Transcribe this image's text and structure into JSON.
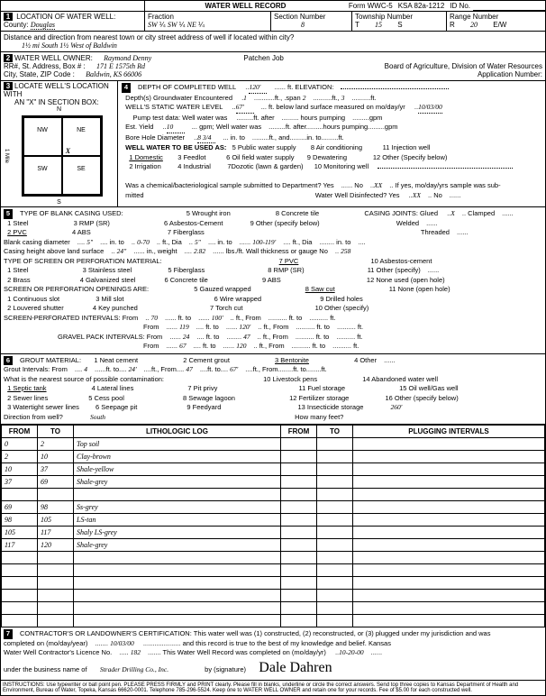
{
  "header": {
    "title": "WATER WELL RECORD",
    "form_no": "Form WWC-5",
    "ksa": "KSA 82a-1212",
    "id_label": "ID No."
  },
  "sec1": {
    "label": "LOCATION OF WATER WELL:",
    "county_label": "County:",
    "county": "Douglas",
    "fraction": "Fraction",
    "sw1": "SW",
    "q1": "¼",
    "sw2": "SW",
    "q2": "¼",
    "ne": "NE",
    "q3": "¼",
    "section_label": "Section Number",
    "section": "8",
    "township_label": "Township Number",
    "township_t": "T",
    "township": "15",
    "township_s": "S",
    "range_label": "Range Number",
    "range_r": "R",
    "range": "20",
    "range_ew": "E/W",
    "dist_label": "Distance and direction from nearest town or city street address of well if located within city?",
    "dist": "1½ mi South  1½ West of Baldwin"
  },
  "sec2": {
    "label": "WATER WELL OWNER:",
    "name": "Raymond Denny",
    "job_label": "Patchen Job",
    "addr_label": "RR#, St. Address, Box # :",
    "addr": "171 E 1575th Rd",
    "board": "Board of Agriculture, Division of Water Resources",
    "city_label": "City, State, ZIP Code :",
    "city": "Baldwin, KS  66006",
    "app_label": "Application Number:"
  },
  "sec3": {
    "label": "LOCATE WELL'S LOCATION WITH",
    "sub": "AN \"X\" IN SECTION BOX:",
    "n": "N",
    "s": "S",
    "nw": "NW",
    "ne": "NE",
    "sw": "SW",
    "se": "SE",
    "w": "W",
    "e": "E",
    "x": "X",
    "mile": "1 Mile"
  },
  "sec4": {
    "label": "DEPTH OF COMPLETED WELL",
    "depth": "120'",
    "elev_label": "ft. ELEVATION:",
    "gw_label": "Depth(s) Groundwater Encountered",
    "gw1": "1",
    "gw2": "2",
    "gw3": "3",
    "swl_label": "WELL'S STATIC WATER LEVEL",
    "swl": "67'",
    "swl_suffix": "ft. below land surface measured on mo/day/yr",
    "swl_date": "10/03/00",
    "pump_label": "Pump test data: Well water was",
    "after": "ft. after",
    "hrs": "hours pumping",
    "gpm_lbl": "gpm",
    "est_label": "Est. Yield",
    "est": "10",
    "est_gpm": "gpm; Well water was",
    "bore_label": "Bore Hole Diameter",
    "bore": "8 3/4",
    "bore_in": "in. to",
    "use_label": "WELL WATER TO BE USED AS:",
    "u1": "1 Domestic",
    "u2": "2 Irrigation",
    "u3": "3 Feedlot",
    "u4": "4 Industrial",
    "u5": "5 Public water supply",
    "u6": "6 Oil field water supply",
    "u7": "7Dozotic (lawn & garden)",
    "u8": "8 Air conditioning",
    "u9": "9 Dewatering",
    "u10": "10 Monitoring well",
    "u11": "11 Injection well",
    "u12": "12 Other (Specify below)",
    "chem_label": "Was a chemical/bacteriological sample submitted to Department? Yes",
    "chem_no": "No",
    "chem_xx": "XX",
    "chem_if": "If yes, mo/day/yrs sample was sub-",
    "mitted": "mitted",
    "disinfect": "Water Well Disinfected? Yes",
    "dis_xx": "XX",
    "dis_no": "No"
  },
  "sec5": {
    "label": "TYPE OF BLANK CASING USED:",
    "o1": "1 Steel",
    "o2": "2 PVC",
    "o3": "3 RMP (SR)",
    "o4": "4 ABS",
    "o5": "5 Wrought iron",
    "o6": "6 Asbestos-Cement",
    "o7": "7 Fiberglass",
    "o8": "8 Concrete tile",
    "o9": "9 Other (specify below)",
    "joints": "CASING JOINTS: Glued",
    "joints_x": "X",
    "clamped": "Clamped",
    "welded": "Welded",
    "threaded": "Threaded",
    "dia_label": "Blank casing diameter",
    "dia": "5\"",
    "dia_to": "in. to",
    "dia_range": "0-70",
    "dia_ft": "ft., Dia",
    "dia2": "5\"",
    "dia_to2": "in. to",
    "dia_range2": "100-119'",
    "dia_ft2": "ft., Dia",
    "dia_to3": "in. to",
    "height_label": "Casing height above land surface",
    "height": "24\"",
    "weight_label": "in., weight",
    "weight": "2.82",
    "lbs": "lbs./ft. Wall thickness or gauge No",
    "gauge": "258",
    "screen_label": "TYPE OF SCREEN OR PERFORATION MATERIAL:",
    "s1": "1 Steel",
    "s2": "2 Brass",
    "s3": "3 Stainless steel",
    "s4": "4 Galvanized steel",
    "s5": "5 Fiberglass",
    "s6": "6 Concrete tile",
    "s7": "7 PVC",
    "s8": "8 RMP (SR)",
    "s9": "9 ABS",
    "s10": "10 Asbestos-cement",
    "s11": "11 Other (specify)",
    "s12": "12 None used (open hole)",
    "open_label": "SCREEN OR PERFORATION OPENINGS ARE:",
    "p1": "1 Continuous slot",
    "p2": "2 Louvered shutter",
    "p3": "3 Mill slot",
    "p4": "4 Key punched",
    "p5": "5 Gauzed wrapped",
    "p6": "6 Wire wrapped",
    "p7": "7 Torch cut",
    "p8": "8 Saw cut",
    "p9": "9 Drilled holes",
    "p10": "10 Other (specify)",
    "p11": "11 None (open hole)",
    "si_label": "SCREEN-PERFORATED INTERVALS: From",
    "si_f1": "70",
    "si_t1": "100'",
    "si_f2": "119",
    "si_t2": "120'",
    "gp_label": "GRAVEL PACK INTERVALS: From",
    "gp_f1": "24",
    "gp_t1": "47",
    "gp_f2": "67",
    "gp_t2": "120",
    "ft_to": "ft. to",
    "ft_from": "ft., From",
    "ft": "ft."
  },
  "sec6": {
    "label": "GROUT MATERIAL:",
    "g1": "1 Neat cement",
    "g2": "2 Cement grout",
    "g3": "3 Bentonite",
    "g4": "4 Other",
    "gi_label": "Grout Intervals: From",
    "gi_f1": "4",
    "gi_t1": "24'",
    "gi_f2": "47",
    "gi_t2": "67'",
    "contam_label": "What is the nearest source of possible contamination:",
    "c1": "1 Septic tank",
    "c2": "2 Sewer lines",
    "c3": "3 Watertight sewer lines",
    "c4": "4 Lateral lines",
    "c5": "5 Cess pool",
    "c6": "6 Seepage pit",
    "c7": "7 Pit privy",
    "c8": "8 Sewage lagoon",
    "c9": "9 Feedyard",
    "c10": "10 Livestock pens",
    "c11": "11 Fuel storage",
    "c12": "12 Fertilizer storage",
    "c13": "13 Insecticide storage",
    "c14": "14 Abandoned water well",
    "c15": "15 Oil well/Gas well",
    "c16": "16 Other (specify below)",
    "dir_label": "Direction from well?",
    "dir": "South",
    "feet_label": "How many feet?",
    "feet": "260'"
  },
  "log": {
    "h_from": "FROM",
    "h_to": "TO",
    "h_lith": "LITHOLOGIC LOG",
    "h_plug": "PLUGGING INTERVALS",
    "rows": [
      {
        "f": "0",
        "t": "2",
        "l": "Top soil"
      },
      {
        "f": "2",
        "t": "10",
        "l": "Clay-brown"
      },
      {
        "f": "10",
        "t": "37",
        "l": "Shale-yellow"
      },
      {
        "f": "37",
        "t": "69",
        "l": "Shale-grey"
      },
      {
        "f": "",
        "t": "",
        "l": ""
      },
      {
        "f": "69",
        "t": "98",
        "l": "Ss-grey"
      },
      {
        "f": "98",
        "t": "105",
        "l": "LS-tan"
      },
      {
        "f": "105",
        "t": "117",
        "l": "Shaly LS-grey"
      },
      {
        "f": "117",
        "t": "120",
        "l": "Shale-grey"
      }
    ]
  },
  "sec7": {
    "label": "CONTRACTOR'S OR LANDOWNER'S CERTIFICATION: This water well was (1) constructed, (2) reconstructed, or (3) plugged under my jurisdiction and was",
    "comp_label": "completed on (mo/day/year)",
    "comp_date": "10/03/00",
    "belief": "and this record is true to the best of my knowledge and belief. Kansas",
    "lic_label": "Water Well Contractor's Licence No.",
    "lic": "182",
    "rec_label": "This Water Well Record was completed on (mo/day/yr)",
    "rec_date": "10-20-00",
    "bus_label": "under the business name of",
    "bus": "Strader Drilling Co., Inc.",
    "sig_label": "by (signature)",
    "sig": "Dale Dahren"
  },
  "instr": "INSTRUCTIONS: Use typewriter or ball point pen. PLEASE PRESS FIRMLY and PRINT clearly. Please fill in blanks, underline or circle the correct answers. Send top three copies to Kansas Department of Health and Environment, Bureau of Water, Topeka, Kansas 66620-0001. Telephone 785-296-5524. Keep one to WATER WELL OWNER and retain one for your records. Fee of $5.00 for each constructed well."
}
